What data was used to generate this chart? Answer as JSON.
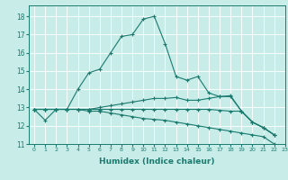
{
  "xlabel": "Humidex (Indice chaleur)",
  "bg_color": "#c8ece8",
  "grid_color": "#ffffff",
  "line_color": "#1a7a6e",
  "marker": "+",
  "xlim": [
    -0.5,
    23
  ],
  "ylim": [
    11,
    18.6
  ],
  "yticks": [
    11,
    12,
    13,
    14,
    15,
    16,
    17,
    18
  ],
  "xticks": [
    0,
    1,
    2,
    3,
    4,
    5,
    6,
    7,
    8,
    9,
    10,
    11,
    12,
    13,
    14,
    15,
    16,
    17,
    18,
    19,
    20,
    21,
    22,
    23
  ],
  "series": [
    {
      "x": [
        0,
        1,
        2,
        3,
        4,
        5,
        6,
        7,
        8,
        9,
        10,
        11,
        12,
        13,
        14,
        15,
        16,
        17,
        18,
        19,
        20,
        21,
        22
      ],
      "y": [
        12.9,
        12.3,
        12.9,
        12.9,
        14.0,
        14.9,
        15.1,
        16.0,
        16.9,
        17.0,
        17.85,
        18.0,
        16.5,
        14.7,
        14.5,
        14.7,
        13.8,
        13.6,
        13.6,
        12.8,
        12.2,
        11.9,
        11.5
      ]
    },
    {
      "x": [
        0,
        1,
        2,
        3,
        4,
        5,
        6,
        7,
        8,
        9,
        10,
        11,
        12,
        13,
        14,
        15,
        16,
        17,
        18,
        19,
        20,
        21,
        22
      ],
      "y": [
        12.9,
        12.9,
        12.9,
        12.9,
        12.9,
        12.9,
        13.0,
        13.1,
        13.2,
        13.3,
        13.4,
        13.5,
        13.5,
        13.55,
        13.4,
        13.4,
        13.5,
        13.6,
        13.65,
        12.8,
        12.2,
        11.9,
        11.5
      ]
    },
    {
      "x": [
        0,
        1,
        2,
        3,
        4,
        5,
        6,
        7,
        8,
        9,
        10,
        11,
        12,
        13,
        14,
        15,
        16,
        17,
        18,
        19,
        20,
        21,
        22
      ],
      "y": [
        12.9,
        12.9,
        12.9,
        12.9,
        12.9,
        12.8,
        12.8,
        12.7,
        12.6,
        12.5,
        12.4,
        12.35,
        12.3,
        12.2,
        12.1,
        12.0,
        11.9,
        11.8,
        11.7,
        11.6,
        11.5,
        11.4,
        11.0
      ]
    },
    {
      "x": [
        0,
        1,
        2,
        3,
        4,
        5,
        6,
        7,
        8,
        9,
        10,
        11,
        12,
        13,
        14,
        15,
        16,
        17,
        18,
        19,
        20,
        21,
        22
      ],
      "y": [
        12.9,
        12.9,
        12.9,
        12.9,
        12.9,
        12.9,
        12.9,
        12.9,
        12.9,
        12.9,
        12.9,
        12.9,
        12.9,
        12.9,
        12.9,
        12.9,
        12.9,
        12.85,
        12.8,
        12.8,
        12.2,
        11.9,
        11.5
      ]
    }
  ]
}
